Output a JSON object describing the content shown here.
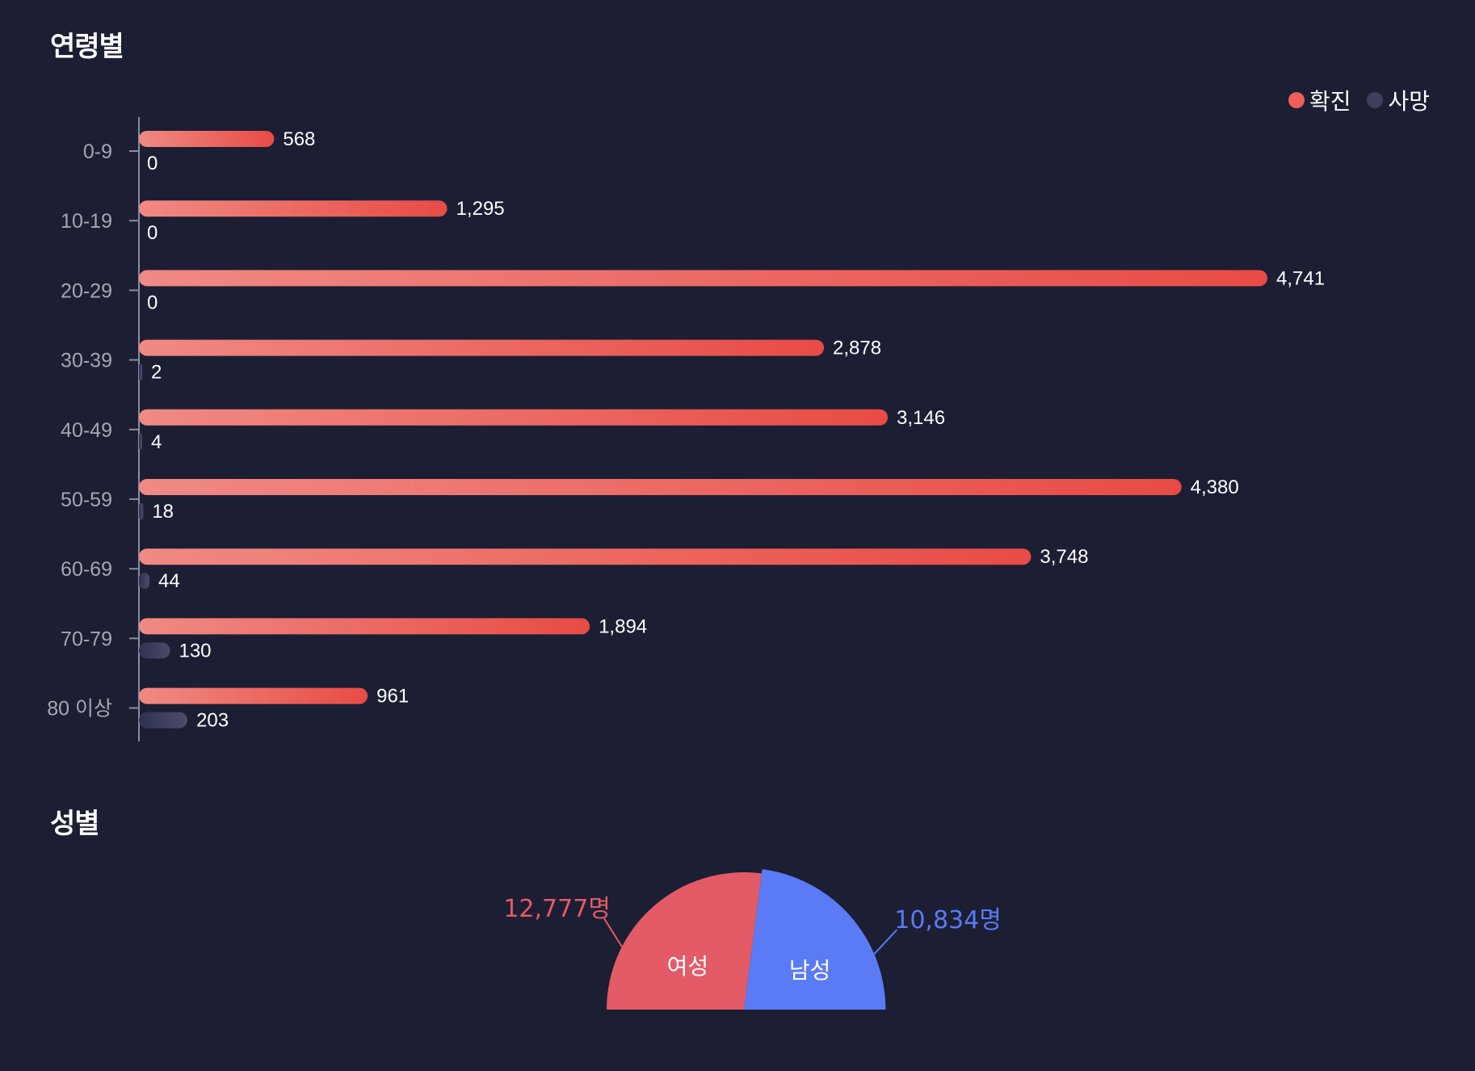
{
  "sections": {
    "age_title": "연령별",
    "gender_title": "성별"
  },
  "colors": {
    "background": "#1c1e33",
    "confirmed_start": "#f08a84",
    "confirmed_end": "#e84b45",
    "death_start": "#2f3150",
    "death_end": "#4a4c6a",
    "female": "#e35b66",
    "male": "#5a7bf5",
    "axis": "#8a8d9c"
  },
  "legend": [
    {
      "label": "확진",
      "color": "#ef5f5a"
    },
    {
      "label": "사망",
      "color": "#3d3f5c"
    }
  ],
  "chart_data": [
    {
      "type": "bar",
      "orientation": "horizontal",
      "title": "연령별",
      "categories": [
        "0-9",
        "10-19",
        "20-29",
        "30-39",
        "40-49",
        "50-59",
        "60-69",
        "70-79",
        "80 이상"
      ],
      "series": [
        {
          "name": "확진",
          "values": [
            568,
            1295,
            4741,
            2878,
            3146,
            4380,
            3748,
            1894,
            961
          ],
          "labels": [
            "568",
            "1,295",
            "4,741",
            "2,878",
            "3,146",
            "4,380",
            "3,748",
            "1,894",
            "961"
          ]
        },
        {
          "name": "사망",
          "values": [
            0,
            0,
            0,
            2,
            4,
            18,
            44,
            130,
            203
          ],
          "labels": [
            "0",
            "0",
            "0",
            "2",
            "4",
            "18",
            "44",
            "130",
            "203"
          ]
        }
      ],
      "xlim": [
        0,
        4741
      ],
      "legend_position": "top-right",
      "grid": false
    },
    {
      "type": "pie",
      "variant": "half-donut-rose",
      "title": "성별",
      "slices": [
        {
          "name": "여성",
          "value": 12777,
          "label": "12,777명",
          "color": "#e35b66"
        },
        {
          "name": "남성",
          "value": 10834,
          "label": "10,834명",
          "color": "#5a7bf5"
        }
      ]
    }
  ]
}
